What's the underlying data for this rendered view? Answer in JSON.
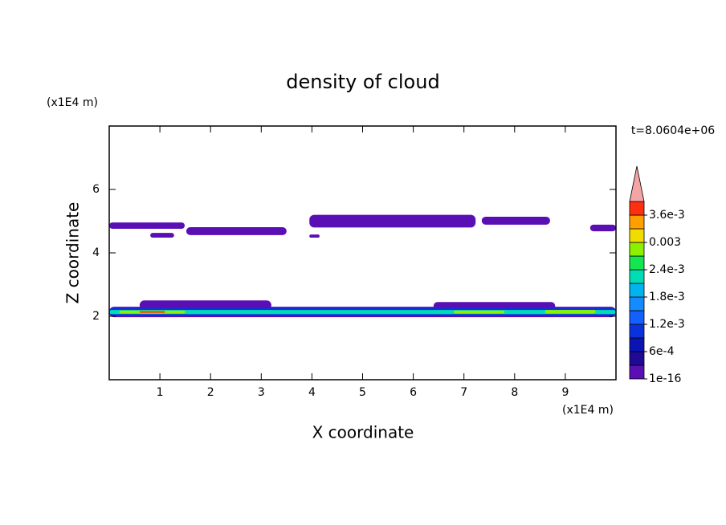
{
  "chart_data": {
    "type": "contour",
    "title": "density of cloud",
    "x_label": "X coordinate",
    "y_label": "Z coordinate",
    "x_unit": "(x1E4 m)",
    "y_unit": "(x1E4 m)",
    "annotation": "t=8.0604e+06",
    "xlim": [
      0,
      10
    ],
    "ylim": [
      0,
      8
    ],
    "xticks": [
      1,
      2,
      3,
      4,
      5,
      6,
      7,
      8,
      9
    ],
    "yticks": [
      2,
      4,
      6
    ],
    "colorbar": {
      "lim": [
        0,
        0.0039
      ],
      "levels": [
        0,
        0.0003,
        0.0006,
        0.0009,
        0.0012,
        0.0015,
        0.0018,
        0.0021,
        0.0024,
        0.0027,
        0.003,
        0.0033,
        0.0036,
        0.0039
      ],
      "colors": [
        "#5a0fb4",
        "#1e0a96",
        "#0a14b4",
        "#0a32dc",
        "#1460ff",
        "#148cff",
        "#00b4f0",
        "#00dcb4",
        "#14e650",
        "#8cf000",
        "#f0dc00",
        "#ffa000",
        "#ff3010"
      ],
      "extend_color": "#f4a4a4",
      "ticks": [
        {
          "value": 1e-16,
          "label": "1e-16"
        },
        {
          "value": 0.0006,
          "label": "6e-4"
        },
        {
          "value": 0.0012,
          "label": "1.2e-3"
        },
        {
          "value": 0.0018,
          "label": "1.8e-3"
        },
        {
          "value": 0.0024,
          "label": "2.4e-3"
        },
        0.003,
        {
          "value": 0.0036,
          "label": "3.6e-3"
        }
      ]
    },
    "regions": [
      {
        "x": [
          0,
          1.49
        ],
        "z": [
          4.76,
          4.96
        ],
        "level": 0
      },
      {
        "x": [
          0.81,
          1.28
        ],
        "z": [
          4.48,
          4.63
        ],
        "level": 0
      },
      {
        "x": [
          1.52,
          3.5
        ],
        "z": [
          4.56,
          4.81
        ],
        "level": 0
      },
      {
        "x": [
          3.95,
          4.15
        ],
        "z": [
          4.48,
          4.58
        ],
        "level": 0
      },
      {
        "x": [
          3.95,
          7.23
        ],
        "z": [
          4.8,
          5.2
        ],
        "level": 0
      },
      {
        "x": [
          7.35,
          8.7
        ],
        "z": [
          4.89,
          5.14
        ],
        "level": 0
      },
      {
        "x": [
          9.49,
          10
        ],
        "z": [
          4.68,
          4.89
        ],
        "level": 0
      },
      {
        "x": [
          0,
          10
        ],
        "z": [
          1.97,
          2.3
        ],
        "level": 0
      },
      {
        "x": [
          0.6,
          3.2
        ],
        "z": [
          2.2,
          2.5
        ],
        "level": 0
      },
      {
        "x": [
          6.4,
          8.8
        ],
        "z": [
          2.2,
          2.45
        ],
        "level": 0
      },
      {
        "x": [
          0,
          10
        ],
        "z": [
          2.02,
          2.26
        ],
        "level": 3
      },
      {
        "x": [
          0,
          10
        ],
        "z": [
          2.07,
          2.2
        ],
        "level": 7
      },
      {
        "x": [
          0.2,
          1.5
        ],
        "z": [
          2.09,
          2.18
        ],
        "level": 9
      },
      {
        "x": [
          0.6,
          1.1
        ],
        "z": [
          2.11,
          2.16
        ],
        "level": 12
      },
      {
        "x": [
          6.8,
          7.8
        ],
        "z": [
          2.09,
          2.18
        ],
        "level": 9
      },
      {
        "x": [
          8.6,
          9.6
        ],
        "z": [
          2.09,
          2.2
        ],
        "level": 9
      }
    ]
  }
}
